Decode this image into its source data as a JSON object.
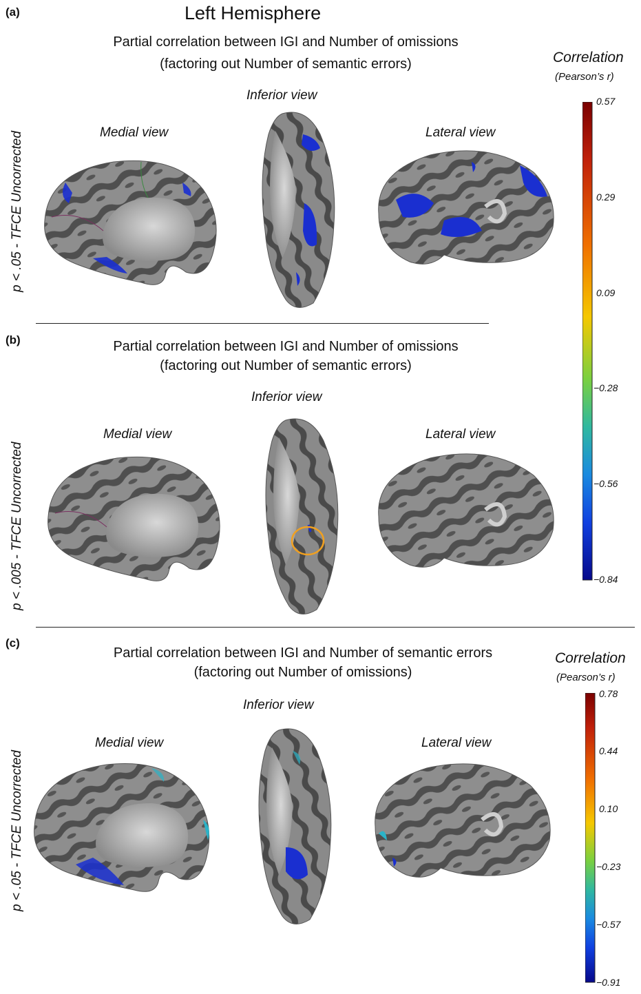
{
  "figure": {
    "hemisphere_title": "Left Hemisphere",
    "panels": [
      {
        "label": "(a)",
        "title_line1": "Partial correlation between IGI and Number of omissions",
        "title_line2": "(factoring out Number of semantic errors)",
        "threshold_label": "p < .05 -  TFCE Uncorrected",
        "views": {
          "medial": "Medial view",
          "inferior": "Inferior view",
          "lateral": "Lateral view"
        }
      },
      {
        "label": "(b)",
        "title_line1": "Partial correlation between IGI and Number of omissions",
        "title_line2": "(factoring out Number of semantic errors)",
        "threshold_label": "p < .005 -  TFCE Uncorrected",
        "views": {
          "medial": "Medial view",
          "inferior": "Inferior view",
          "lateral": "Lateral view"
        }
      },
      {
        "label": "(c)",
        "title_line1": "Partial correlation between IGI and Number of semantic errors",
        "title_line2": "(factoring out Number of omissions)",
        "threshold_label": "p < .05 -  TFCE Uncorrected",
        "views": {
          "medial": "Medial view",
          "inferior": "Inferior view",
          "lateral": "Lateral view"
        }
      }
    ],
    "colorbars": [
      {
        "title": "Correlation",
        "subtitle": "(Pearson’s r)",
        "ticks": [
          "0.57",
          "0.29",
          "0.09",
          "−0.28",
          "−0.56",
          "−0.84"
        ]
      },
      {
        "title": "Correlation",
        "subtitle": "(Pearson’s r)",
        "ticks": [
          "0.78",
          "0.44",
          "0.10",
          "−0.23",
          "−0.57",
          "−0.91"
        ]
      }
    ],
    "colors": {
      "surface_dark": "#4d4d4d",
      "surface_light": "#8f8f8f",
      "cluster_blue": "#1a2fd0",
      "cluster_cyan": "#2bb3c8",
      "highlight_ring": "#f0a020"
    }
  }
}
